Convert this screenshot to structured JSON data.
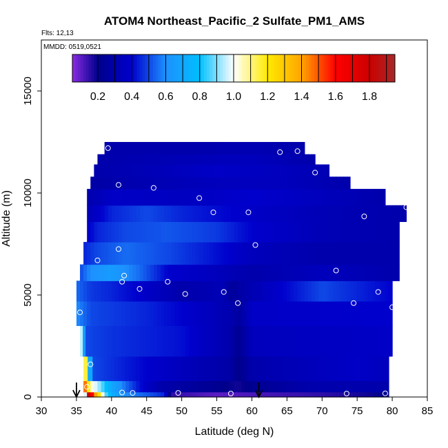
{
  "chart_data": {
    "type": "heatmap",
    "title": "ATOM4 Northeast_Pacific_2 Sulfate_PM1_AMS",
    "flights_note": "Flts: 12,13",
    "date_note": "MMDD: 0519,0521",
    "xlabel": "Latitude (deg N)",
    "ylabel": "Altitude (m)",
    "xlim": [
      30,
      85
    ],
    "ylim": [
      0,
      17500
    ],
    "x_ticks": [
      "30",
      "35",
      "40",
      "45",
      "50",
      "55",
      "60",
      "65",
      "70",
      "75",
      "80",
      "85"
    ],
    "y_ticks": [
      "0",
      "5000",
      "10000",
      "15000"
    ],
    "colorbar": {
      "range": [
        0.05,
        1.95
      ],
      "tick_labels": [
        "0.2",
        "0.4",
        "0.6",
        "0.8",
        "1.0",
        "1.2",
        "1.4",
        "1.6",
        "1.8"
      ],
      "stops": [
        [
          0.05,
          "#8a2be2"
        ],
        [
          0.2,
          "#00008b"
        ],
        [
          0.4,
          "#0000cd"
        ],
        [
          0.6,
          "#1e90ff"
        ],
        [
          0.8,
          "#00bfff"
        ],
        [
          1.0,
          "#ffffff"
        ],
        [
          1.2,
          "#ffea00"
        ],
        [
          1.4,
          "#ffa500"
        ],
        [
          1.6,
          "#ff0000"
        ],
        [
          1.8,
          "#cc0000"
        ],
        [
          1.95,
          "#a52a2a"
        ]
      ]
    },
    "profile_lat_min": [
      37.0,
      37.0,
      36.5,
      36.0,
      35.5,
      35.0,
      35.0,
      35.5,
      36.0,
      36.5,
      36.5,
      36.5,
      37.0,
      37.5,
      38.0,
      39.0
    ],
    "profile_lat_max": [
      79.5,
      79.5,
      79.5,
      80.0,
      80.0,
      80.5,
      80.5,
      81.0,
      81.0,
      82.0,
      79.0,
      74.0,
      71.0,
      69.0,
      67.5,
      0
    ],
    "layers": [
      {
        "z": [
          0,
          250
        ],
        "segments": [
          [
            36,
            0.05
          ],
          [
            36.5,
            1.9
          ],
          [
            37,
            1.7
          ],
          [
            37.5,
            1.5
          ],
          [
            38,
            1.3
          ],
          [
            38.5,
            1.15
          ],
          [
            39,
            0.9
          ],
          [
            40,
            0.75
          ],
          [
            41,
            0.65
          ],
          [
            42,
            0.6
          ],
          [
            44,
            0.55
          ],
          [
            46,
            0.5
          ],
          [
            47.5,
            0.45
          ],
          [
            48.5,
            0.15
          ],
          [
            55,
            0.1
          ],
          [
            60,
            0.12
          ],
          [
            70,
            0.15
          ],
          [
            79.5,
            0.2
          ]
        ]
      },
      {
        "z": [
          250,
          800
        ],
        "segments": [
          [
            36,
            1.6
          ],
          [
            37,
            1.05
          ],
          [
            38,
            0.95
          ],
          [
            40,
            0.7
          ],
          [
            42,
            0.55
          ],
          [
            44,
            0.42
          ],
          [
            47,
            0.3
          ],
          [
            55,
            0.22
          ],
          [
            58,
            0.18
          ],
          [
            60,
            0.22
          ],
          [
            68,
            0.3
          ],
          [
            79.5,
            0.3
          ]
        ]
      },
      {
        "z": [
          800,
          2000
        ],
        "segments": [
          [
            36,
            1.4
          ],
          [
            36.6,
            0.9
          ],
          [
            37.3,
            0.5
          ],
          [
            45,
            0.4
          ],
          [
            57,
            0.28
          ],
          [
            58,
            0.2
          ],
          [
            60,
            0.3
          ],
          [
            75,
            0.38
          ],
          [
            79.5,
            0.35
          ]
        ]
      },
      {
        "z": [
          2000,
          3500
        ],
        "segments": [
          [
            35.5,
            1.1
          ],
          [
            36.3,
            0.5
          ],
          [
            40,
            0.47
          ],
          [
            50,
            0.42
          ],
          [
            57,
            0.3
          ],
          [
            58,
            0.22
          ],
          [
            60,
            0.35
          ],
          [
            80,
            0.38
          ]
        ]
      },
      {
        "z": [
          3500,
          4700
        ],
        "segments": [
          [
            35,
            0.6
          ],
          [
            37,
            0.5
          ],
          [
            45,
            0.45
          ],
          [
            52,
            0.38
          ],
          [
            57.5,
            0.3
          ],
          [
            58,
            0.25
          ],
          [
            60,
            0.38
          ],
          [
            80,
            0.4
          ]
        ]
      },
      {
        "z": [
          4700,
          5700
        ],
        "segments": [
          [
            35,
            0.55
          ],
          [
            37,
            0.48
          ],
          [
            40,
            0.45
          ],
          [
            45,
            0.38
          ],
          [
            50,
            0.3
          ],
          [
            56,
            0.33
          ],
          [
            57,
            0.25
          ],
          [
            60,
            0.32
          ],
          [
            70,
            0.5
          ],
          [
            75,
            0.45
          ],
          [
            80,
            0.4
          ]
        ]
      },
      {
        "z": [
          5700,
          6500
        ],
        "segments": [
          [
            35.5,
            0.5
          ],
          [
            37,
            0.6
          ],
          [
            40,
            0.65
          ],
          [
            44,
            0.55
          ],
          [
            48,
            0.4
          ],
          [
            55,
            0.35
          ],
          [
            60,
            0.3
          ],
          [
            70,
            0.35
          ],
          [
            81,
            0.3
          ]
        ]
      },
      {
        "z": [
          6500,
          7600
        ],
        "segments": [
          [
            36,
            0.45
          ],
          [
            38,
            0.5
          ],
          [
            42,
            0.55
          ],
          [
            48,
            0.5
          ],
          [
            55,
            0.42
          ],
          [
            60,
            0.35
          ],
          [
            70,
            0.3
          ],
          [
            81,
            0.3
          ]
        ]
      },
      {
        "z": [
          7600,
          8600
        ],
        "segments": [
          [
            36.5,
            0.38
          ],
          [
            38,
            0.45
          ],
          [
            42,
            0.5
          ],
          [
            48,
            0.52
          ],
          [
            55,
            0.48
          ],
          [
            60,
            0.4
          ],
          [
            70,
            0.33
          ],
          [
            81,
            0.3
          ]
        ]
      },
      {
        "z": [
          8600,
          9400
        ],
        "segments": [
          [
            36.5,
            0.33
          ],
          [
            40,
            0.45
          ],
          [
            45,
            0.5
          ],
          [
            50,
            0.45
          ],
          [
            60,
            0.38
          ],
          [
            70,
            0.33
          ],
          [
            82,
            0.3
          ]
        ]
      },
      {
        "z": [
          9400,
          10200
        ],
        "segments": [
          [
            36.5,
            0.3
          ],
          [
            40,
            0.38
          ],
          [
            50,
            0.36
          ],
          [
            60,
            0.4
          ],
          [
            70,
            0.35
          ],
          [
            79,
            0.3
          ]
        ]
      },
      {
        "z": [
          10200,
          10800
        ],
        "segments": [
          [
            37,
            0.28
          ],
          [
            45,
            0.32
          ],
          [
            55,
            0.35
          ],
          [
            65,
            0.35
          ],
          [
            74,
            0.3
          ]
        ]
      },
      {
        "z": [
          10800,
          11400
        ],
        "segments": [
          [
            37.5,
            0.3
          ],
          [
            45,
            0.33
          ],
          [
            55,
            0.38
          ],
          [
            65,
            0.35
          ],
          [
            71,
            0.32
          ]
        ]
      },
      {
        "z": [
          11400,
          11900
        ],
        "segments": [
          [
            38,
            0.3
          ],
          [
            50,
            0.33
          ],
          [
            60,
            0.35
          ],
          [
            69,
            0.3
          ]
        ]
      },
      {
        "z": [
          11900,
          12500
        ],
        "segments": [
          [
            39,
            0.3
          ],
          [
            50,
            0.3
          ],
          [
            60,
            0.32
          ],
          [
            67.5,
            0.3
          ]
        ]
      }
    ],
    "sample_points": [
      [
        39.5,
        12200
      ],
      [
        64,
        12000
      ],
      [
        66.5,
        12050
      ],
      [
        69,
        11000
      ],
      [
        41,
        10400
      ],
      [
        46,
        10250
      ],
      [
        52.5,
        9750
      ],
      [
        54.5,
        9050
      ],
      [
        59.5,
        9050
      ],
      [
        76,
        8850
      ],
      [
        82,
        9300
      ],
      [
        41,
        7250
      ],
      [
        60.5,
        7450
      ],
      [
        38,
        6700
      ],
      [
        72,
        6200
      ],
      [
        41.8,
        5950
      ],
      [
        41.5,
        5650
      ],
      [
        48,
        5650
      ],
      [
        44,
        5300
      ],
      [
        50.5,
        5050
      ],
      [
        56,
        5150
      ],
      [
        58,
        4600
      ],
      [
        74.5,
        4600
      ],
      [
        78,
        5150
      ],
      [
        80,
        4400
      ],
      [
        35.5,
        4150
      ],
      [
        37,
        1600
      ],
      [
        36.5,
        500
      ],
      [
        41.5,
        220
      ],
      [
        43,
        200
      ],
      [
        49.5,
        200
      ],
      [
        57,
        170
      ],
      [
        73.5,
        170
      ],
      [
        79,
        180
      ]
    ],
    "arrows_lat": [
      35,
      61
    ]
  }
}
